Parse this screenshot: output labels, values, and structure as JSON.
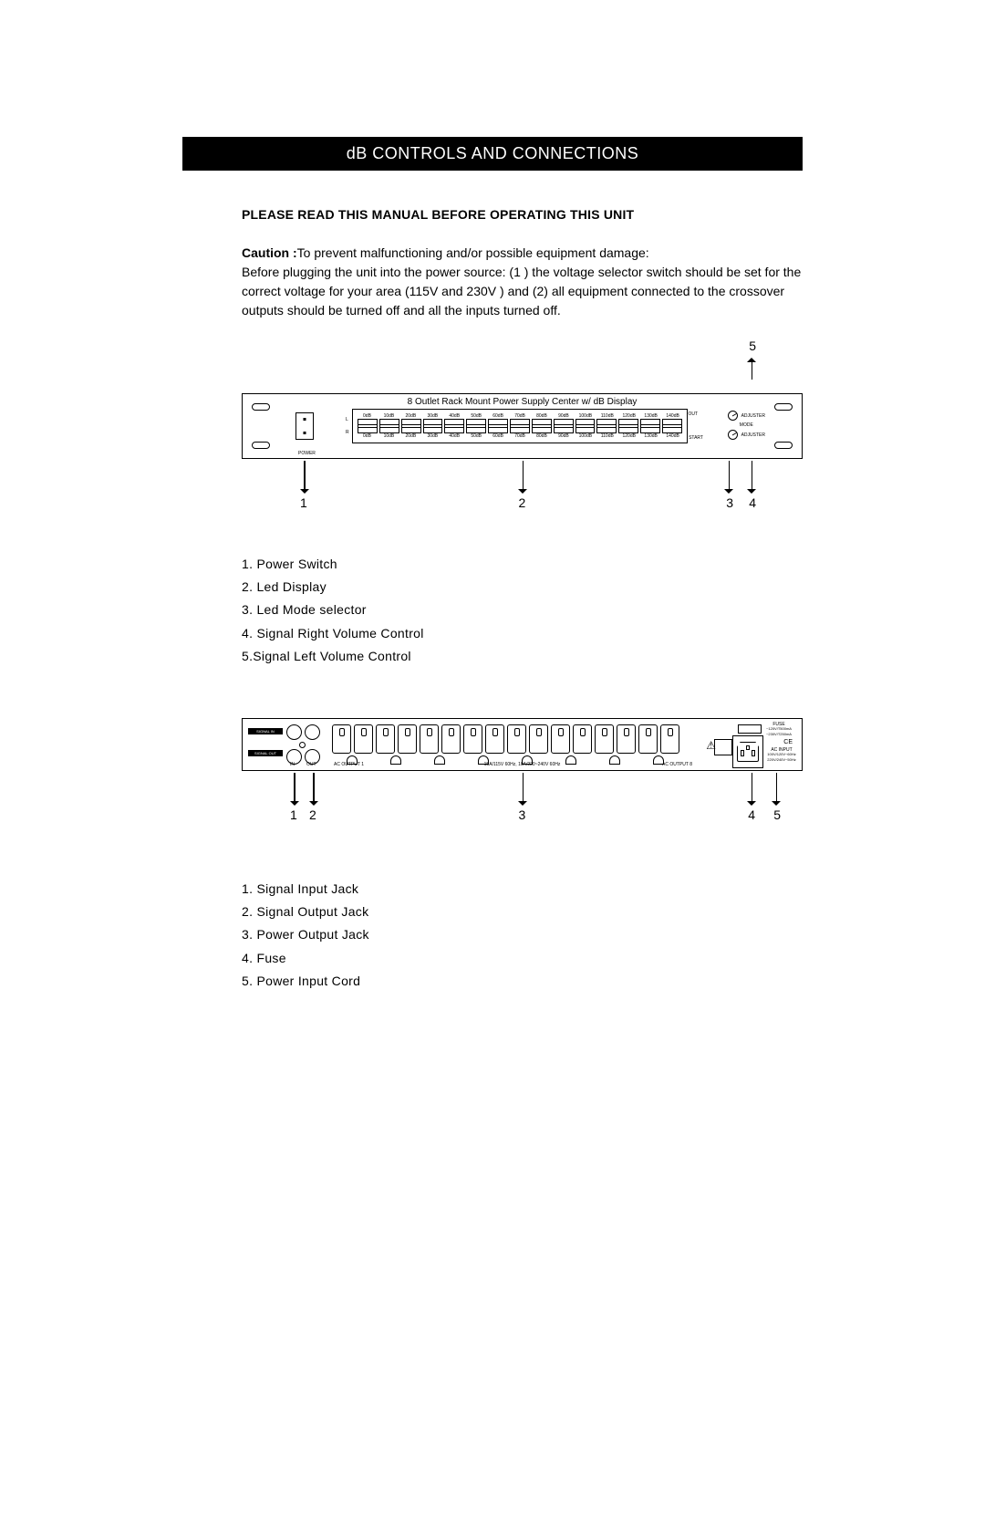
{
  "title": "dB CONTROLS AND CONNECTIONS",
  "warning": "PLEASE READ THIS  MANUAL BEFORE OPERATING THIS UNIT",
  "caution_label": "Caution :",
  "caution_text": "To prevent malfunctioning and/or possible equipment damage:\nBefore plugging the unit into the power source: (1 ) the voltage selector switch should be set for the correct voltage for your area (115V and 230V ) and (2) all equipment connected to the crossover outputs should be turned off and all the inputs turned off.",
  "front": {
    "panel_title": "8 Outlet Rack Mount Power Supply Center w/ dB Display",
    "db_scale": [
      "0dB",
      "10dB",
      "20dB",
      "30dB",
      "40dB",
      "50dB",
      "60dB",
      "70dB",
      "80dB",
      "90dB",
      "100dB",
      "110dB",
      "120dB",
      "130dB",
      "140dB"
    ],
    "out_label": "OUT",
    "start_label": "START",
    "side_L": "L",
    "side_R": "R",
    "power_label": "POWER",
    "adjuster": "ADJUSTER",
    "mode": "MODE",
    "callouts": {
      "1": "1",
      "2": "2",
      "3": "3",
      "4": "4",
      "5": "5"
    },
    "legend": [
      "1. Power Switch",
      "2. Led Display",
      "3. Led  Mode selector",
      "4. Signal Right Volume Control",
      "5.Signal Left Volume Control"
    ]
  },
  "rear": {
    "signal_in": "SIGNAL IN",
    "signal_out": "SIGNAL OUT",
    "in_lbl": "IN",
    "out_lbl": "OUT",
    "ac_out1": "AC OUTPUT 1",
    "ac_center": "15A/115V 60Hz, 10A/220~240V 60Hz",
    "ac_out8": "AC OUTPUT 8",
    "fuse": "FUSE",
    "fuse_spec": "~120V/T500mA\n~230V/T250mA",
    "ce": "CE",
    "ac_input": "AC INPUT",
    "hz1": "100V/120V~60Hz",
    "hz2": "220V/240V~50Hz",
    "callouts": {
      "1": "1",
      "2": "2",
      "3": "3",
      "4": "4",
      "5": "5"
    },
    "legend": [
      "1. Signal Input Jack",
      "2. Signal Output Jack",
      "3. Power Output Jack",
      "4. Fuse",
      "5. Power Input Cord"
    ]
  }
}
